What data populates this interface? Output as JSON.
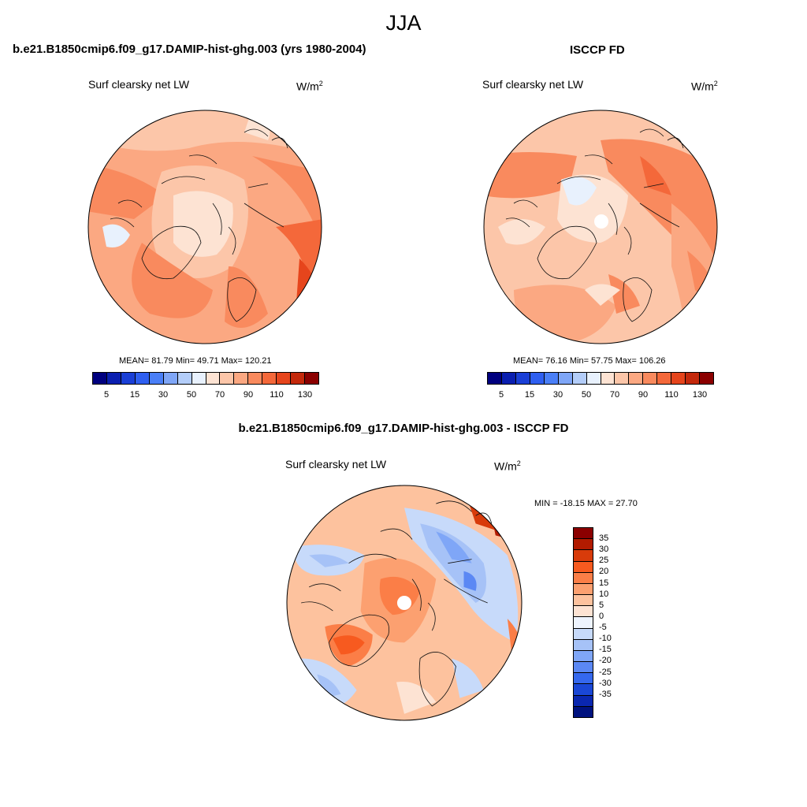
{
  "figure": {
    "season_title": "JJA"
  },
  "panels": {
    "model": {
      "case_title": "b.e21.B1850cmip6.f09_g17.DAMIP-hist-ghg.003 (yrs 1980-2004)",
      "var_label": "Surf clearsky net LW",
      "unit_base": "W/m",
      "unit_exp": "2",
      "stats_text": "MEAN=  81.79  Min=  49.71  Max= 120.21",
      "stats": {
        "mean": 81.79,
        "min": 49.71,
        "max": 120.21
      }
    },
    "obs": {
      "case_title": "ISCCP FD",
      "var_label": "Surf clearsky net LW",
      "unit_base": "W/m",
      "unit_exp": "2",
      "stats_text": "MEAN=  76.16  Min=  57.75  Max= 106.26",
      "stats": {
        "mean": 76.16,
        "min": 57.75,
        "max": 106.26
      }
    },
    "diff": {
      "case_title": "b.e21.B1850cmip6.f09_g17.DAMIP-hist-ghg.003 - ISCCP FD",
      "var_label": "Surf clearsky net LW",
      "unit_base": "W/m",
      "unit_exp": "2",
      "stats_text": "MIN = -18.15 MAX =  27.70",
      "stats": {
        "min": -18.15,
        "max": 27.7
      }
    }
  },
  "colorbars": {
    "abs": {
      "colors": [
        "#00007f",
        "#0a1fb0",
        "#1a3fd6",
        "#2f5ff0",
        "#4a7ff7",
        "#7fa6f7",
        "#b3cdf9",
        "#e8f1fd",
        "#fde3d3",
        "#fcc6a9",
        "#fba882",
        "#f98a5e",
        "#f4683a",
        "#e6451c",
        "#c4290c",
        "#8b0000"
      ],
      "ticks": [
        "5",
        "15",
        "30",
        "50",
        "70",
        "90",
        "110",
        "130"
      ]
    },
    "diff": {
      "colors_top_to_bottom": [
        "#8b0000",
        "#b21b00",
        "#d83b0a",
        "#f75a1f",
        "#fb7e47",
        "#fca070",
        "#fdc29e",
        "#fde3d3",
        "#eef4fe",
        "#c7dafa",
        "#a6c2f7",
        "#7fa6f7",
        "#5b88f4",
        "#3568ee",
        "#1a47d6",
        "#0a27b0",
        "#00127f"
      ],
      "ticks": [
        "35",
        "30",
        "25",
        "20",
        "15",
        "10",
        "5",
        "0",
        "-5",
        "-10",
        "-15",
        "-20",
        "-25",
        "-30",
        "-35"
      ]
    }
  }
}
